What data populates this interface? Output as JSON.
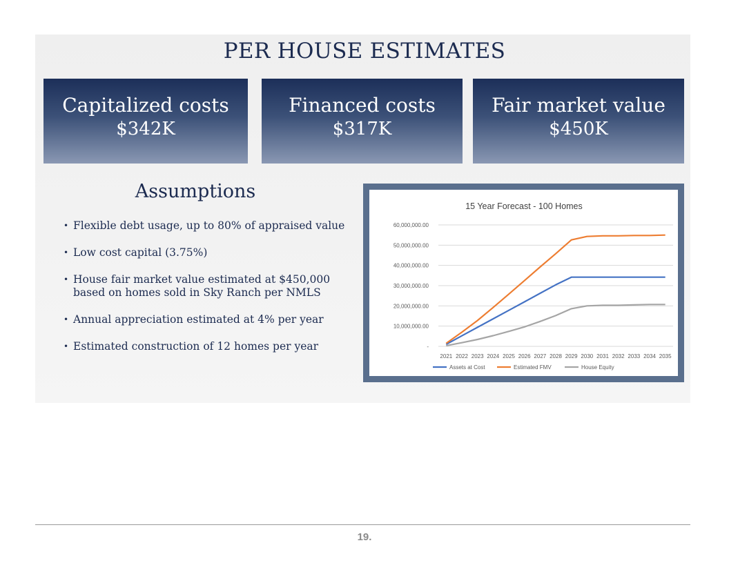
{
  "title": "PER HOUSE ESTIMATES",
  "metrics": [
    {
      "label": "Capitalized costs",
      "value": "$342K"
    },
    {
      "label": "Financed costs",
      "value": "$317K"
    },
    {
      "label": "Fair market value",
      "value": "$450K"
    }
  ],
  "assumptions": {
    "title": "Assumptions",
    "bullets": [
      "Flexible debt usage, up to 80% of appraised value",
      "Low cost capital (3.75%)",
      "House fair market value estimated at $450,000 based on homes sold in Sky Ranch per NMLS",
      "Annual appreciation estimated at 4% per year",
      "Estimated construction of 12 homes per year"
    ]
  },
  "chart_data": {
    "type": "line",
    "title": "15 Year Forecast - 100 Homes",
    "xlabel": "",
    "ylabel": "",
    "x": [
      "2021",
      "2022",
      "2023",
      "2024",
      "2025",
      "2026",
      "2027",
      "2028",
      "2029",
      "2030",
      "2031",
      "2032",
      "2033",
      "2034",
      "2035"
    ],
    "y_ticks": [
      "-",
      "10,000,000.00",
      "20,000,000.00",
      "30,000,000.00",
      "40,000,000.00",
      "50,000,000.00",
      "60,000,000.00"
    ],
    "ylim": [
      0,
      60000000
    ],
    "grid": true,
    "legend": "bottom",
    "series": [
      {
        "name": "Assets at Cost",
        "color": "#4472c4",
        "values": [
          1000000,
          5200000,
          9400000,
          13600000,
          17800000,
          22000000,
          26200000,
          30400000,
          34200000,
          34200000,
          34200000,
          34200000,
          34200000,
          34200000,
          34200000
        ]
      },
      {
        "name": "Estimated FMV",
        "color": "#ed7d31",
        "values": [
          1500000,
          7000000,
          12800000,
          19200000,
          25800000,
          32500000,
          39200000,
          45800000,
          52600000,
          54300000,
          54600000,
          54600000,
          54800000,
          54800000,
          55000000
        ]
      },
      {
        "name": "House Equity",
        "color": "#a5a5a5",
        "values": [
          300000,
          1800000,
          3400000,
          5300000,
          7400000,
          9600000,
          12300000,
          15200000,
          18600000,
          20000000,
          20300000,
          20300000,
          20500000,
          20700000,
          20700000
        ]
      }
    ]
  },
  "footer": {
    "page_number": "19."
  }
}
